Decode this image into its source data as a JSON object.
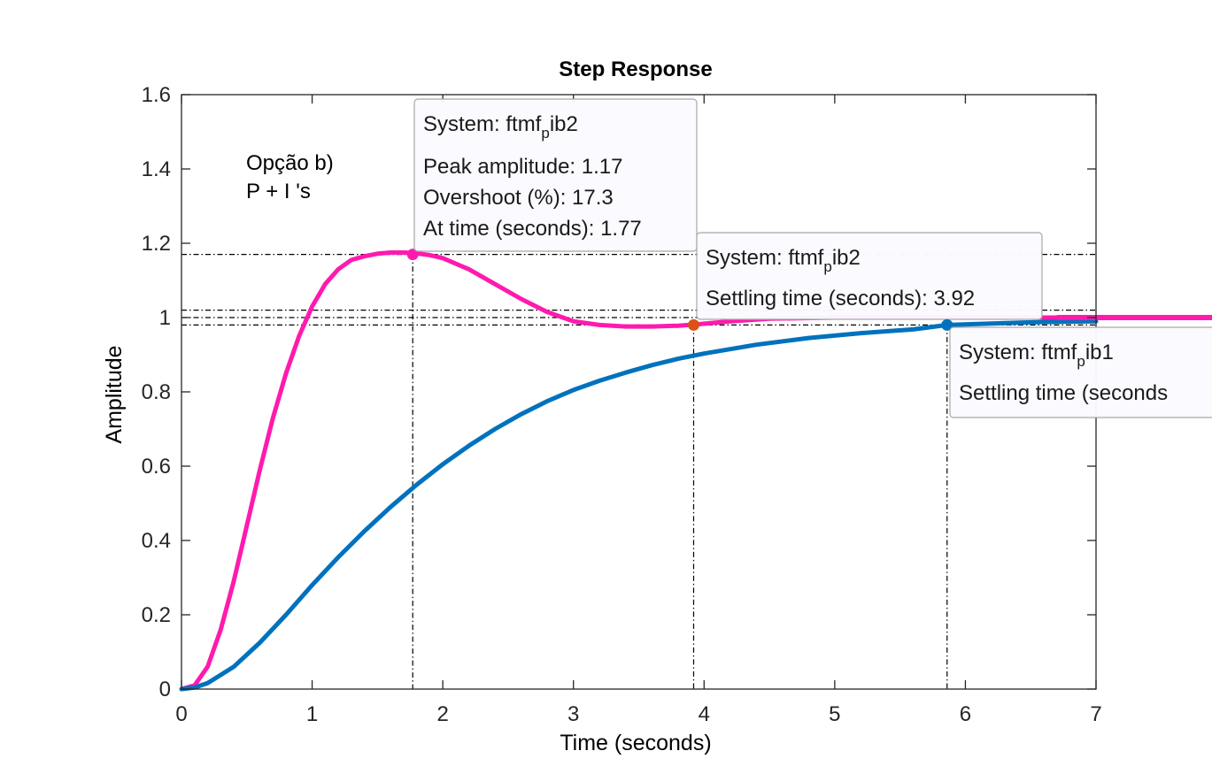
{
  "chart_data": {
    "type": "line",
    "title": "Step Response",
    "xlabel": "Time (seconds)",
    "ylabel": "Amplitude",
    "xlim": [
      0,
      7
    ],
    "ylim": [
      0,
      1.6
    ],
    "x_ticks": [
      "0",
      "1",
      "2",
      "3",
      "4",
      "5",
      "6",
      "7"
    ],
    "y_ticks": [
      "0",
      "0.2",
      "0.4",
      "0.6",
      "0.8",
      "1",
      "1.2",
      "1.4",
      "1.6"
    ],
    "grid": false,
    "annotation": [
      "Opção b)",
      "P + I 's"
    ],
    "series": [
      {
        "color": "#FF1AAE",
        "x": [
          0,
          0.1,
          0.2,
          0.3,
          0.4,
          0.5,
          0.6,
          0.7,
          0.8,
          0.9,
          1.0,
          1.1,
          1.2,
          1.3,
          1.4,
          1.5,
          1.6,
          1.7,
          1.77,
          1.9,
          2.0,
          2.2,
          2.4,
          2.6,
          2.8,
          3.0,
          3.2,
          3.4,
          3.6,
          3.8,
          3.92,
          4.2,
          4.5,
          5.0,
          5.5,
          6.0,
          6.5,
          7.0
        ],
        "y": [
          0,
          0.01,
          0.06,
          0.16,
          0.29,
          0.44,
          0.59,
          0.73,
          0.85,
          0.95,
          1.03,
          1.09,
          1.13,
          1.155,
          1.165,
          1.172,
          1.175,
          1.175,
          1.174,
          1.168,
          1.16,
          1.13,
          1.09,
          1.05,
          1.015,
          0.99,
          0.98,
          0.976,
          0.976,
          0.978,
          0.981,
          0.99,
          0.997,
          1.0,
          1.0,
          1.0,
          1.0,
          1.0
        ]
      },
      {
        "color": "#0072BD",
        "x": [
          0,
          0.1,
          0.2,
          0.4,
          0.6,
          0.8,
          1.0,
          1.2,
          1.4,
          1.6,
          1.8,
          2.0,
          2.2,
          2.4,
          2.6,
          2.8,
          3.0,
          3.2,
          3.4,
          3.6,
          3.8,
          4.0,
          4.4,
          4.8,
          5.2,
          5.6,
          5.86,
          6.2,
          6.6,
          7.0
        ],
        "y": [
          0,
          0.004,
          0.016,
          0.06,
          0.125,
          0.2,
          0.28,
          0.355,
          0.425,
          0.49,
          0.55,
          0.605,
          0.655,
          0.7,
          0.74,
          0.775,
          0.805,
          0.83,
          0.852,
          0.872,
          0.889,
          0.903,
          0.927,
          0.945,
          0.958,
          0.968,
          0.98,
          0.984,
          0.988,
          0.99
        ]
      }
    ],
    "datatips": [
      {
        "x": 1.77,
        "y": 1.17,
        "marker_color": "#FF1AAE",
        "system_prefix": "System: ftmf",
        "system_sub": "p",
        "system_suffix": "ib2",
        "lines": [
          "Peak amplitude: 1.17",
          "Overshoot (%): 17.3",
          "At time (seconds): 1.77"
        ]
      },
      {
        "x": 3.92,
        "y": 0.98,
        "marker_color": "#D95319",
        "system_prefix": "System: ftmf",
        "system_sub": "p",
        "system_suffix": "ib2",
        "lines": [
          "Settling time (seconds): 3.92"
        ]
      },
      {
        "x": 5.86,
        "y": 0.98,
        "marker_color": "#0072BD",
        "system_prefix": "System: ftmf",
        "system_sub": "p",
        "system_suffix": "ib1",
        "lines": [
          "Settling time (seconds"
        ]
      }
    ],
    "reference_lines_y": [
      1.17,
      1.02,
      1.0,
      0.98
    ]
  }
}
